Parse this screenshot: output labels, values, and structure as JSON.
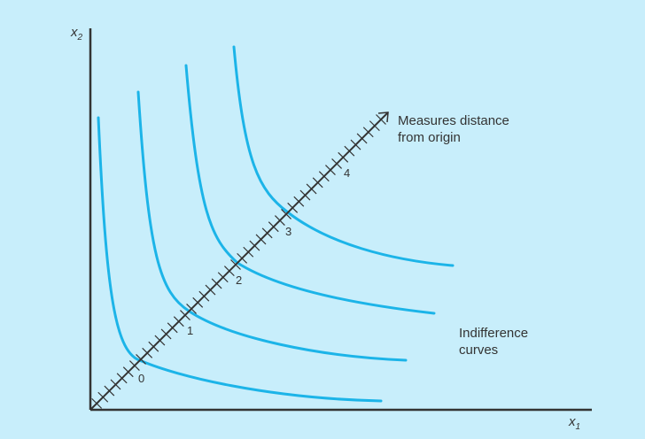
{
  "axes": {
    "x_label": "x",
    "x_subscript": "1",
    "y_label": "x",
    "y_subscript": "2"
  },
  "diagonal": {
    "label_line1": "Measures distance",
    "label_line2": "from origin",
    "markers": [
      "0",
      "1",
      "2",
      "3",
      "4"
    ]
  },
  "curves_label": {
    "line1": "Indifference",
    "line2": "curves"
  },
  "colors": {
    "background": "#c8eefb",
    "curve": "#1cb4e8",
    "axis": "#333333"
  }
}
